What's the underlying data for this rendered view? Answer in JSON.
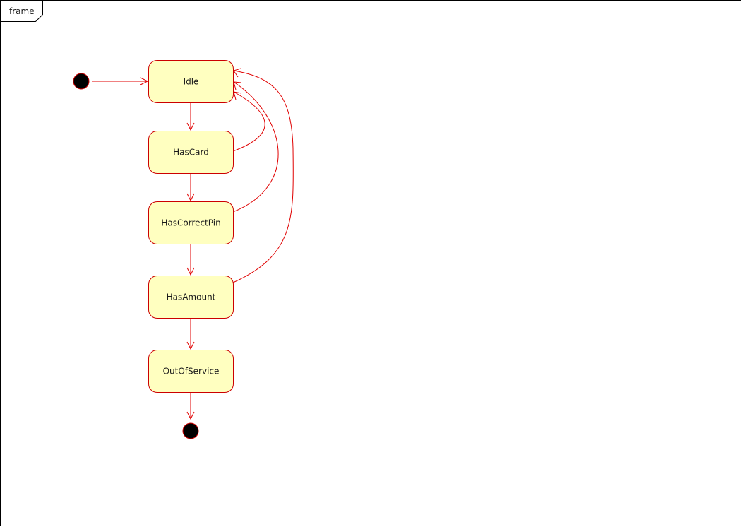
{
  "frame": {
    "label": "frame"
  },
  "states": {
    "idle": "Idle",
    "has_card": "HasCard",
    "has_correct_pin": "HasCorrectPin",
    "has_amount": "HasAmount",
    "out_of_service": "OutOfService"
  },
  "colors": {
    "state_fill": "#ffffc0",
    "state_stroke": "#cc0000",
    "arrow": "#e00000",
    "node_fill": "#000000",
    "frame_stroke": "#000000"
  }
}
